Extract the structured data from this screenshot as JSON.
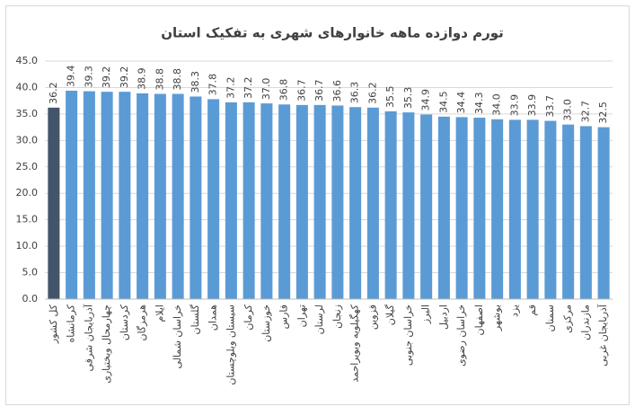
{
  "chart_data": {
    "type": "bar",
    "title": "تورم دوازده ماهه خانوارهای شهری به تفکیک استان",
    "categories": [
      "کل کشور",
      "کرمانشاه",
      "آذربایجان شرقی",
      "چهارمحال وبختیاری",
      "کردستان",
      "هرمزگان",
      "ایلام",
      "خراسان شمالی",
      "گلستان",
      "همدان",
      "سیستان وبلوچستان",
      "کرمان",
      "خوزستان",
      "فارس",
      "تهران",
      "لرستان",
      "زنجان",
      "کهگیلویه وبویراحمد",
      "قزوین",
      "گیلان",
      "خراسان جنوبی",
      "البرز",
      "اردبیل",
      "خراسان رضوی",
      "اصفهان",
      "بوشهر",
      "یزد",
      "قم",
      "سمنان",
      "مرکزی",
      "مازندران",
      "آذربایجان غربی"
    ],
    "values": [
      36.2,
      39.4,
      39.3,
      39.2,
      39.2,
      38.9,
      38.8,
      38.8,
      38.3,
      37.8,
      37.2,
      37.2,
      37.0,
      36.8,
      36.7,
      36.7,
      36.6,
      36.3,
      36.2,
      35.5,
      35.3,
      34.9,
      34.5,
      34.4,
      34.3,
      34.0,
      33.9,
      33.9,
      33.7,
      33.0,
      32.7,
      32.5
    ],
    "value_labels": [
      "36.2",
      "39.4",
      "39.3",
      "39.2",
      "39.2",
      "38.9",
      "38.8",
      "38.8",
      "38.3",
      "37.8",
      "37.2",
      "37.2",
      "37.0",
      "36.8",
      "36.7",
      "36.7",
      "36.6",
      "36.3",
      "36.2",
      "35.5",
      "35.3",
      "34.9",
      "34.5",
      "34.4",
      "34.3",
      "34.0",
      "33.9",
      "33.9",
      "33.7",
      "33.0",
      "32.7",
      "32.5"
    ],
    "colors": [
      "#44546a",
      "#5b9bd5",
      "#5b9bd5",
      "#5b9bd5",
      "#5b9bd5",
      "#5b9bd5",
      "#5b9bd5",
      "#5b9bd5",
      "#5b9bd5",
      "#5b9bd5",
      "#5b9bd5",
      "#5b9bd5",
      "#5b9bd5",
      "#5b9bd5",
      "#5b9bd5",
      "#5b9bd5",
      "#5b9bd5",
      "#5b9bd5",
      "#5b9bd5",
      "#5b9bd5",
      "#5b9bd5",
      "#5b9bd5",
      "#5b9bd5",
      "#5b9bd5",
      "#5b9bd5",
      "#5b9bd5",
      "#5b9bd5",
      "#5b9bd5",
      "#5b9bd5",
      "#5b9bd5",
      "#5b9bd5",
      "#5b9bd5"
    ],
    "ylim": [
      0,
      45
    ],
    "yticks": [
      {
        "value": 0,
        "label": "0.0"
      },
      {
        "value": 5,
        "label": "5.0"
      },
      {
        "value": 10,
        "label": "10.0"
      },
      {
        "value": 15,
        "label": "15.0"
      },
      {
        "value": 20,
        "label": "20.0"
      },
      {
        "value": 25,
        "label": "25.0"
      },
      {
        "value": 30,
        "label": "30.0"
      },
      {
        "value": 35,
        "label": "35.0"
      },
      {
        "value": 40,
        "label": "40.0"
      },
      {
        "value": 45,
        "label": "45.0"
      }
    ],
    "grid": true
  }
}
